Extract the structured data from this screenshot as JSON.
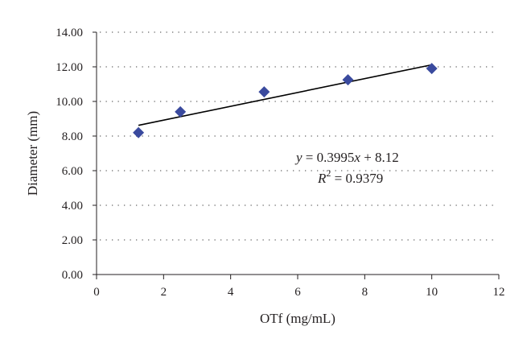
{
  "chart_data": {
    "type": "scatter",
    "title": "",
    "xlabel": "OTf (mg/mL)",
    "ylabel": "Diameter (mm)",
    "xlim": [
      0,
      12
    ],
    "ylim": [
      0,
      14
    ],
    "x_ticks": [
      0,
      2,
      4,
      6,
      8,
      10,
      12
    ],
    "x_tick_labels": [
      "0",
      "2",
      "4",
      "6",
      "8",
      "10",
      "12"
    ],
    "y_ticks": [
      0,
      2,
      4,
      6,
      8,
      10,
      12,
      14
    ],
    "y_tick_labels": [
      "0.00",
      "2.00",
      "4.00",
      "6.00",
      "8.00",
      "10.00",
      "12.00",
      "14.00"
    ],
    "grid": "horizontal-dotted",
    "marker": "diamond",
    "marker_color": "#3a4a9e",
    "series": [
      {
        "x": [
          1.25,
          2.5,
          5,
          7.5,
          10
        ],
        "y": [
          8.2,
          9.4,
          10.55,
          11.25,
          11.9
        ]
      }
    ],
    "trendline": {
      "slope": 0.3995,
      "intercept": 8.12,
      "x_range": [
        1.25,
        10
      ]
    },
    "annotations": {
      "equation": {
        "y_var": "y",
        "rest": " = 0.3995",
        "x_var": "x",
        "tail": " + 8.12"
      },
      "r_squared": {
        "r": "R",
        "sup": "2",
        "rest": " = 0.9379"
      }
    }
  }
}
